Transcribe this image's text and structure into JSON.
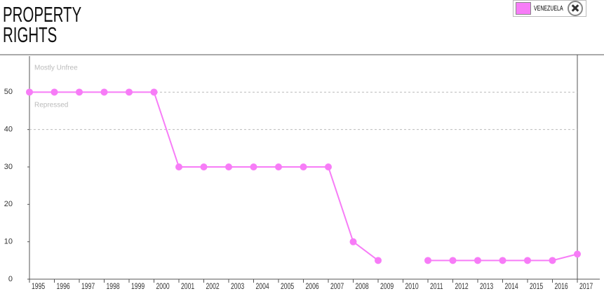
{
  "chart_data": {
    "type": "line",
    "title": "PROPERTY RIGHTS",
    "x": [
      1995,
      1996,
      1997,
      1998,
      1999,
      2000,
      2001,
      2002,
      2003,
      2004,
      2005,
      2006,
      2007,
      2008,
      2009,
      2010,
      2011,
      2012,
      2013,
      2014,
      2015,
      2016,
      2017
    ],
    "series": [
      {
        "name": "VENEZUELA",
        "color": "#f77cf7",
        "values": [
          50,
          50,
          50,
          50,
          50,
          50,
          30,
          30,
          30,
          30,
          30,
          30,
          30,
          10,
          5,
          null,
          5,
          5,
          5,
          5,
          5,
          5,
          6.7
        ]
      }
    ],
    "xlim": [
      1995,
      2017
    ],
    "xticks": [
      1995,
      1996,
      1997,
      1998,
      1999,
      2000,
      2001,
      2002,
      2003,
      2004,
      2005,
      2006,
      2007,
      2008,
      2009,
      2010,
      2011,
      2012,
      2013,
      2014,
      2015,
      2016,
      2017
    ],
    "ylim": [
      0,
      60
    ],
    "yticks": [
      0,
      10,
      20,
      30,
      40,
      50
    ],
    "grid_lines": [
      40,
      50
    ],
    "zone_labels": [
      {
        "text": "Mostly Unfree",
        "value": 55
      },
      {
        "text": "Repressed",
        "value": 45
      }
    ]
  }
}
